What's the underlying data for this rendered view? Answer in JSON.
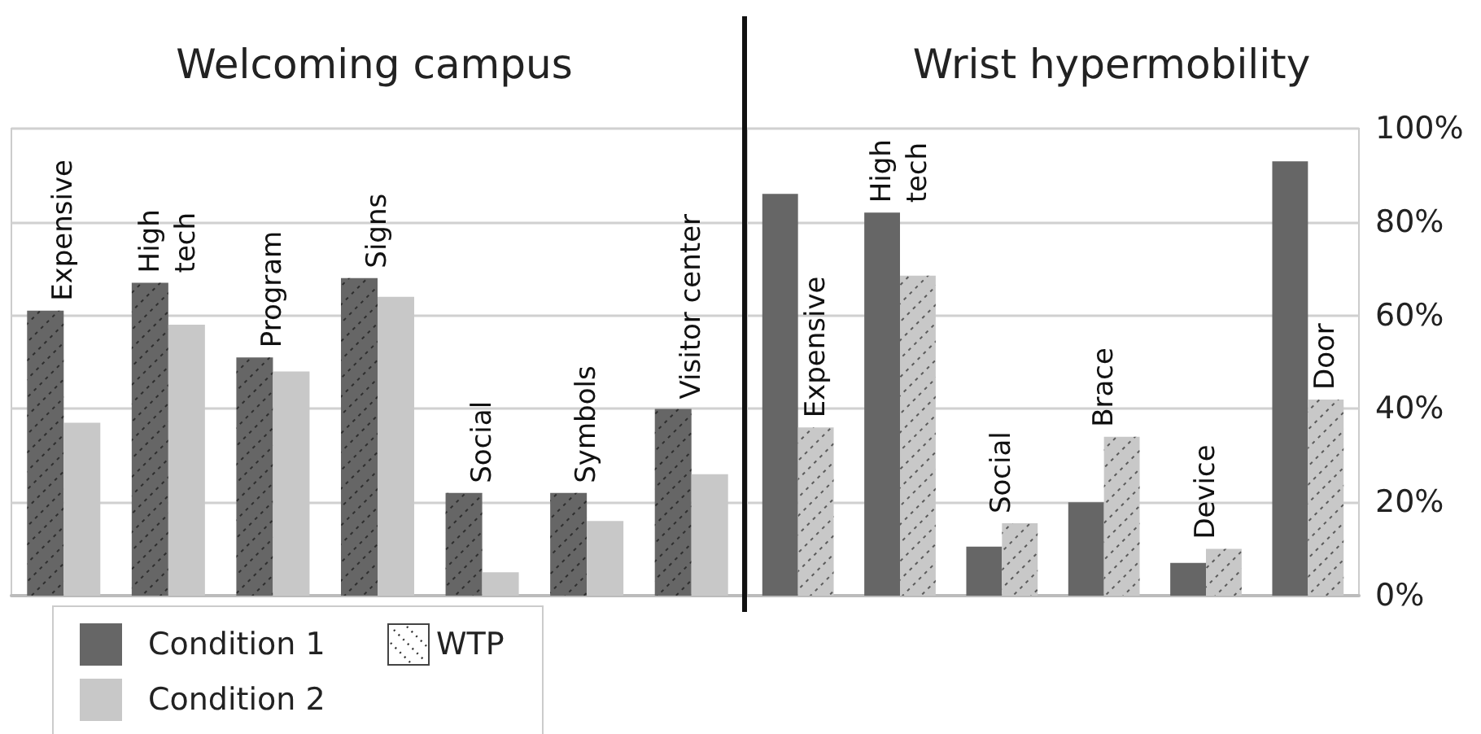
{
  "chart_data": [
    {
      "type": "bar",
      "title": "Welcoming campus",
      "categories": [
        "Expensive",
        "High\ntech",
        "Program",
        "Signs",
        "Social",
        "Symbols",
        "Visitor center"
      ],
      "series": [
        {
          "name": "Condition 1",
          "color": "#666666",
          "line_style": "dotted",
          "values": [
            61,
            67,
            51,
            68,
            22,
            22,
            40
          ]
        },
        {
          "name": "Condition 2",
          "color": "#c8c8c8",
          "values": [
            37,
            58,
            48,
            64,
            5,
            16,
            26
          ]
        }
      ],
      "ylim": [
        0,
        100
      ],
      "yticks": [
        0,
        20,
        40,
        60,
        80,
        100
      ],
      "grid": "y",
      "tick_labels": false,
      "legend": "bottom left",
      "annotations": [
        "WTP"
      ]
    },
    {
      "type": "bar",
      "title": "Wrist hypermobility",
      "categories": [
        "Expensive",
        "High\ntech",
        "Social",
        "Brace",
        "Device",
        "Door"
      ],
      "series": [
        {
          "color": "#666666",
          "values": [
            86,
            82,
            10.5,
            20,
            7,
            93
          ]
        },
        {
          "color": "#c8c8c8",
          "line_style": "dotted",
          "values": [
            36,
            68.5,
            15.5,
            34,
            10,
            42
          ]
        }
      ],
      "ylim": [
        0,
        100
      ],
      "yticks": [
        {
          "value": 0,
          "label": "0%"
        },
        {
          "value": 20,
          "label": "20%"
        },
        {
          "value": 40,
          "label": "40%"
        },
        {
          "value": 60,
          "label": "60%"
        },
        {
          "value": 80,
          "label": "80%"
        },
        {
          "value": 100,
          "label": "100%"
        }
      ],
      "grid": "y",
      "tick_labels": "y"
    }
  ]
}
